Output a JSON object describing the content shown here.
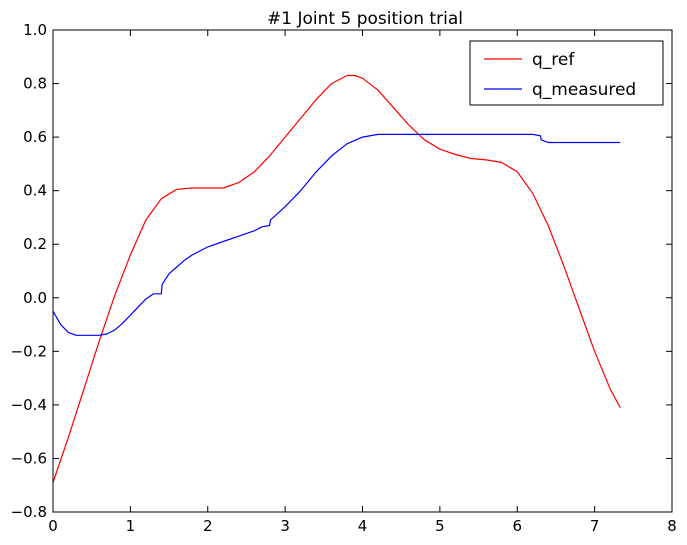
{
  "chart_data": {
    "type": "line",
    "title": "#1 Joint 5 position trial",
    "xlabel": "",
    "ylabel": "",
    "xlim": [
      0,
      8
    ],
    "ylim": [
      -0.8,
      1.0
    ],
    "xticks": [
      "0",
      "1",
      "2",
      "3",
      "4",
      "5",
      "6",
      "7",
      "8"
    ],
    "yticks": [
      "−0.8",
      "−0.6",
      "−0.4",
      "−0.2",
      "0.0",
      "0.2",
      "0.4",
      "0.6",
      "0.8",
      "1.0"
    ],
    "grid": false,
    "legend_position": "top-right",
    "series": [
      {
        "name": "q_ref",
        "color": "#ff0000",
        "x": [
          0,
          0.2,
          0.4,
          0.6,
          0.8,
          1.0,
          1.2,
          1.4,
          1.6,
          1.8,
          2.0,
          2.2,
          2.4,
          2.6,
          2.8,
          3.0,
          3.2,
          3.4,
          3.6,
          3.8,
          3.9,
          4.0,
          4.2,
          4.4,
          4.6,
          4.8,
          5.0,
          5.2,
          5.4,
          5.6,
          5.8,
          6.0,
          6.2,
          6.4,
          6.6,
          6.8,
          7.0,
          7.2,
          7.33
        ],
        "y": [
          -0.69,
          -0.52,
          -0.34,
          -0.16,
          0.01,
          0.16,
          0.29,
          0.37,
          0.405,
          0.41,
          0.41,
          0.41,
          0.43,
          0.47,
          0.53,
          0.6,
          0.67,
          0.74,
          0.8,
          0.83,
          0.83,
          0.82,
          0.775,
          0.71,
          0.645,
          0.59,
          0.555,
          0.535,
          0.52,
          0.515,
          0.505,
          0.47,
          0.39,
          0.27,
          0.12,
          -0.04,
          -0.2,
          -0.34,
          -0.41
        ]
      },
      {
        "name": "q_measured",
        "color": "#0000ff",
        "x": [
          0,
          0.1,
          0.2,
          0.3,
          0.4,
          0.6,
          0.7,
          0.8,
          0.9,
          1.0,
          1.1,
          1.2,
          1.3,
          1.4,
          1.41,
          1.5,
          1.6,
          1.7,
          1.8,
          2.0,
          2.2,
          2.4,
          2.6,
          2.7,
          2.8,
          2.81,
          3.0,
          3.2,
          3.4,
          3.6,
          3.8,
          4.0,
          4.2,
          4.4,
          5.0,
          5.5,
          6.0,
          6.2,
          6.3,
          6.31,
          6.4,
          7.0,
          7.33
        ],
        "y": [
          -0.05,
          -0.1,
          -0.13,
          -0.14,
          -0.14,
          -0.14,
          -0.135,
          -0.12,
          -0.095,
          -0.065,
          -0.035,
          -0.005,
          0.015,
          0.015,
          0.05,
          0.09,
          0.115,
          0.14,
          0.16,
          0.19,
          0.21,
          0.23,
          0.25,
          0.265,
          0.27,
          0.29,
          0.34,
          0.4,
          0.47,
          0.53,
          0.575,
          0.6,
          0.61,
          0.61,
          0.61,
          0.61,
          0.61,
          0.61,
          0.605,
          0.59,
          0.58,
          0.58,
          0.58
        ]
      }
    ]
  }
}
